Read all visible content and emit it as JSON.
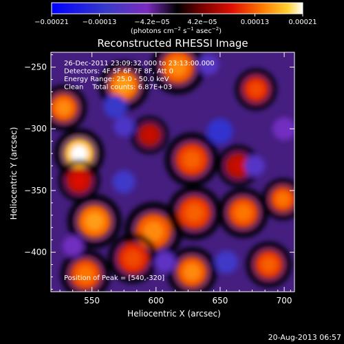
{
  "chart_data": {
    "type": "heatmap",
    "title": "Reconstructed RHESSI Image",
    "xlabel": "Heliocentric X (arcsec)",
    "ylabel": "Heliocentric Y (arcsec)",
    "xlim": [
      518,
      708
    ],
    "ylim": [
      -432,
      -238
    ],
    "x_ticks": [
      550,
      600,
      650,
      700
    ],
    "y_ticks": [
      -250,
      -300,
      -350,
      -400
    ],
    "x_tick_labels": [
      "550",
      "600",
      "650",
      "700"
    ],
    "y_tick_labels": [
      "−250",
      "−300",
      "−350",
      "−400"
    ],
    "colorbar": {
      "min": -0.00021,
      "max": 0.00021,
      "tick_values": [
        -0.00021,
        -0.00013,
        -4.2e-05,
        4.2e-05,
        0.00013,
        0.00021
      ],
      "tick_labels": [
        "−0.00021",
        "−0.00013",
        "−4.2e−05",
        "4.2e−05",
        "0.00013",
        "0.00021"
      ],
      "unit_label_parts": [
        "(photons cm",
        "−2",
        " s",
        "−1",
        " asec",
        "−2",
        ")"
      ]
    },
    "annotations": [
      "26-Dec-2011 23:09:32.000 to 23:13:00.000",
      "Detectors: 4F 5F 6F 7F 8F, Att 0",
      "Energy Range: 25.0 - 50.0 keV",
      "Clean    Total counts: 6.87E+03"
    ],
    "peak_label": "Position of Peak = [540,-320]",
    "peak": {
      "x": 540,
      "y": -320
    },
    "sources": [
      {
        "x": 540,
        "y": -320,
        "value": 0.00021,
        "r": 12
      },
      {
        "x": 528,
        "y": -283,
        "value": 0.00015,
        "r": 11
      },
      {
        "x": 575,
        "y": -265,
        "value": 0.00016,
        "r": 12
      },
      {
        "x": 617,
        "y": -250,
        "value": 0.00015,
        "r": 13
      },
      {
        "x": 678,
        "y": -268,
        "value": 0.00012,
        "r": 10
      },
      {
        "x": 595,
        "y": -305,
        "value": 8e-05,
        "r": 9
      },
      {
        "x": 628,
        "y": -325,
        "value": 0.00013,
        "r": 13
      },
      {
        "x": 664,
        "y": -330,
        "value": 8e-05,
        "r": 10
      },
      {
        "x": 540,
        "y": -342,
        "value": 9e-05,
        "r": 10
      },
      {
        "x": 552,
        "y": -375,
        "value": 0.00016,
        "r": 13
      },
      {
        "x": 598,
        "y": -383,
        "value": 0.00015,
        "r": 14
      },
      {
        "x": 630,
        "y": -368,
        "value": 0.00013,
        "r": 13
      },
      {
        "x": 668,
        "y": -368,
        "value": 0.00014,
        "r": 12
      },
      {
        "x": 699,
        "y": -357,
        "value": 0.00014,
        "r": 10
      },
      {
        "x": 545,
        "y": -418,
        "value": 0.00014,
        "r": 12
      },
      {
        "x": 582,
        "y": -405,
        "value": 0.00012,
        "r": 12
      },
      {
        "x": 628,
        "y": -416,
        "value": 0.00015,
        "r": 12
      },
      {
        "x": 688,
        "y": -410,
        "value": 0.00013,
        "r": 11
      },
      {
        "x": 568,
        "y": -282,
        "value": -0.00012,
        "r": 9
      },
      {
        "x": 575,
        "y": -298,
        "value": -0.0001,
        "r": 8
      },
      {
        "x": 650,
        "y": -302,
        "value": -0.00013,
        "r": 10
      },
      {
        "x": 641,
        "y": -248,
        "value": -9e-05,
        "r": 8
      },
      {
        "x": 575,
        "y": -343,
        "value": -0.00011,
        "r": 9
      },
      {
        "x": 677,
        "y": -330,
        "value": -9e-05,
        "r": 8
      },
      {
        "x": 607,
        "y": -408,
        "value": -8e-05,
        "r": 8
      },
      {
        "x": 655,
        "y": -408,
        "value": -0.00011,
        "r": 9
      },
      {
        "x": 535,
        "y": -395,
        "value": -6e-05,
        "r": 8
      },
      {
        "x": 700,
        "y": -300,
        "value": -6e-05,
        "r": 9
      }
    ]
  },
  "footer": {
    "date": "20-Aug-2013 06:57"
  }
}
